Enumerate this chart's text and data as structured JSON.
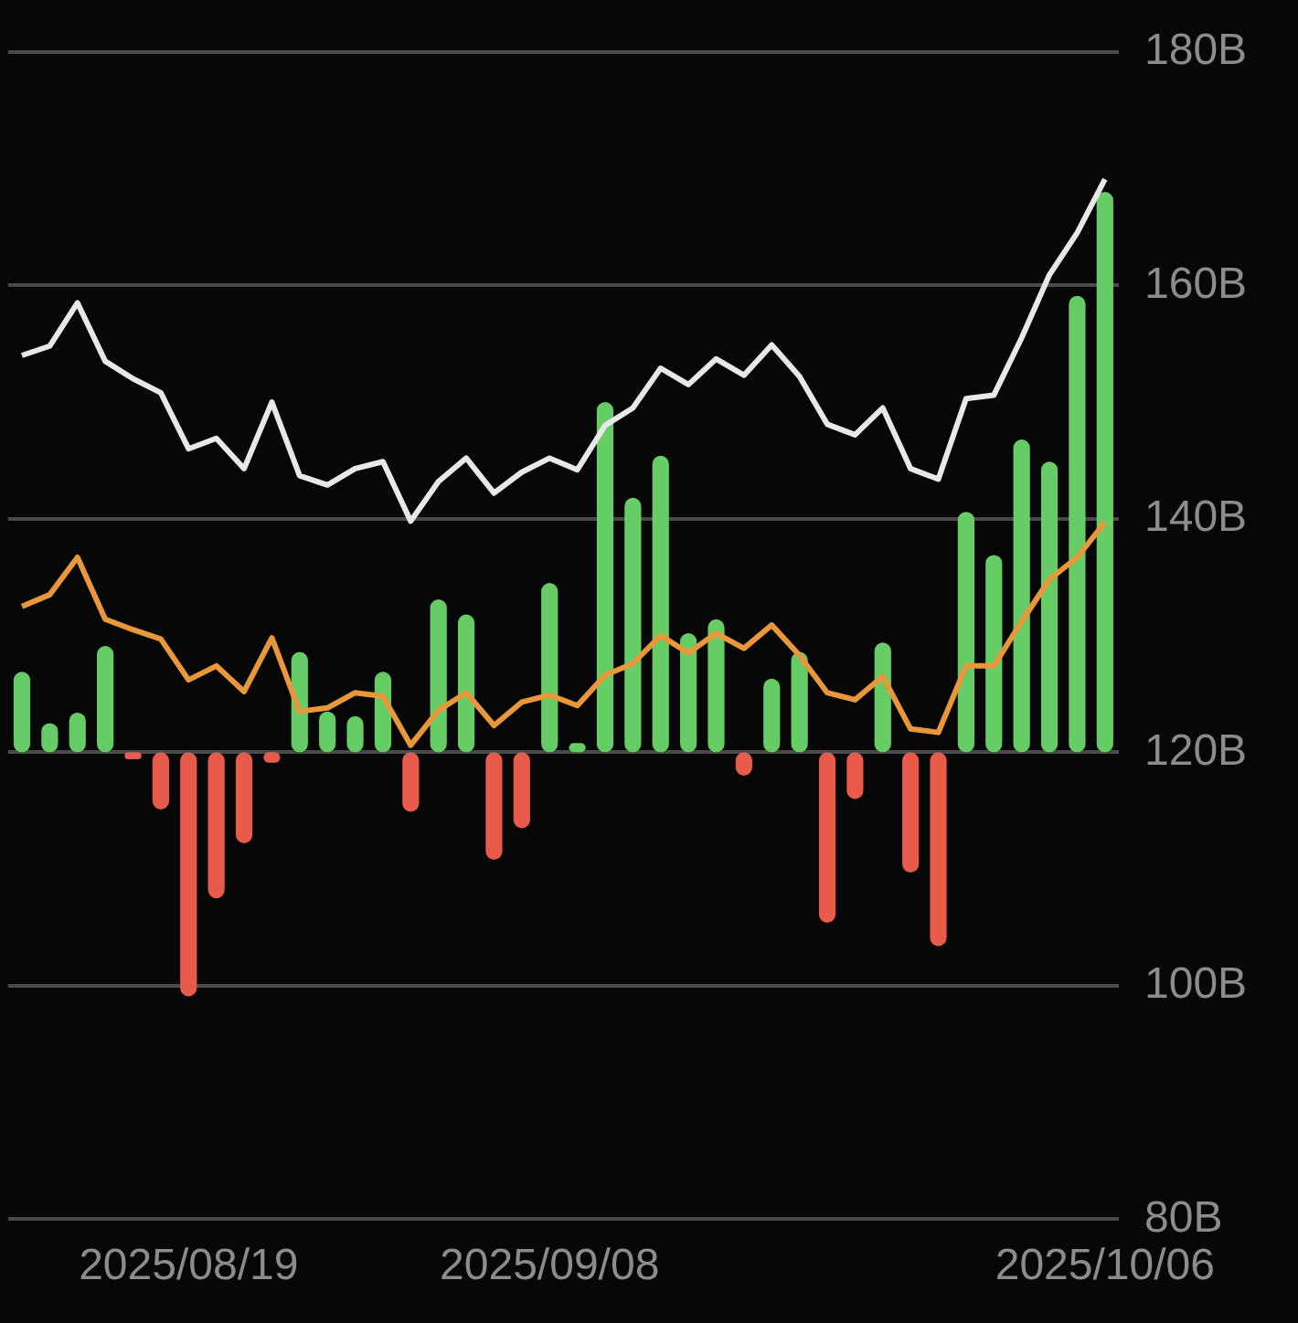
{
  "chart_data": {
    "type": "bar",
    "categories": [
      null,
      null,
      null,
      null,
      null,
      null,
      "2025/08/19",
      null,
      null,
      null,
      null,
      null,
      null,
      null,
      null,
      null,
      null,
      null,
      null,
      "2025/09/08",
      null,
      null,
      null,
      null,
      null,
      null,
      null,
      null,
      null,
      null,
      null,
      null,
      null,
      null,
      null,
      null,
      null,
      null,
      null,
      "2025/10/06"
    ],
    "series": [
      {
        "base": [
          120,
          120,
          120,
          120,
          120,
          120,
          120,
          120,
          120,
          120,
          120,
          120,
          120,
          120,
          120,
          120,
          120,
          120,
          120,
          120,
          120,
          120,
          120,
          120,
          120,
          120,
          120,
          120,
          120,
          120,
          120,
          120,
          120,
          120,
          120,
          120,
          120,
          120,
          120,
          120
        ],
        "values": [
          6.9,
          2.5,
          3.4,
          9.1,
          -0.6,
          -4.9,
          -20.9,
          -12.5,
          -7.8,
          -0.9,
          8.6,
          3.5,
          3.1,
          6.9,
          -5.1,
          13.1,
          11.8,
          -9.2,
          -6.5,
          14.5,
          0.8,
          30,
          21.8,
          25.4,
          10.2,
          11.4,
          -2,
          6.3,
          8.6,
          -14.6,
          -4,
          9.4,
          -10.3,
          -16.6,
          20.6,
          16.9,
          26.8,
          24.9,
          39.1,
          48
        ],
        "colors": [
          "#66cc66",
          "#66cc66",
          "#66cc66",
          "#66cc66",
          "#e85a4a",
          "#e85a4a",
          "#e85a4a",
          "#e85a4a",
          "#e85a4a",
          "#e85a4a",
          "#66cc66",
          "#66cc66",
          "#66cc66",
          "#66cc66",
          "#e85a4a",
          "#66cc66",
          "#66cc66",
          "#e85a4a",
          "#e85a4a",
          "#66cc66",
          "#66cc66",
          "#66cc66",
          "#66cc66",
          "#66cc66",
          "#66cc66",
          "#66cc66",
          "#e85a4a",
          "#66cc66",
          "#66cc66",
          "#e85a4a",
          "#e85a4a",
          "#66cc66",
          "#e85a4a",
          "#e85a4a",
          "#66cc66",
          "#66cc66",
          "#66cc66",
          "#66cc66",
          "#66cc66",
          "#66cc66"
        ]
      },
      {
        "type": "line",
        "color": "#e8e8e8",
        "values": [
          154,
          154.8,
          158.5,
          153.5,
          152,
          150.8,
          146,
          146.9,
          144.3,
          150,
          143.7,
          142.9,
          144.3,
          144.9,
          139.8,
          143.2,
          145.2,
          142.2,
          144,
          145.2,
          144.2,
          148,
          149.5,
          152.9,
          151.5,
          153.7,
          152.3,
          154.9,
          152.2,
          148.1,
          147.2,
          149.5,
          144.3,
          143.4,
          150.3,
          150.6,
          155.5,
          160.9,
          164.5,
          169.1
        ]
      },
      {
        "type": "line",
        "color": "#e8973a",
        "values": [
          132.5,
          133.5,
          136.7,
          131.4,
          130.5,
          129.7,
          126.2,
          127.4,
          125.2,
          129.8,
          123.5,
          123.8,
          125.1,
          124.8,
          120.6,
          123.6,
          125.1,
          122.3,
          124.3,
          124.9,
          124,
          126.6,
          127.6,
          130,
          128.5,
          130.2,
          128.9,
          130.9,
          128.3,
          125.1,
          124.5,
          126.5,
          122,
          121.7,
          127.4,
          127.4,
          131.2,
          134.8,
          136.7,
          139.7
        ]
      }
    ],
    "ylim": [
      80,
      180
    ],
    "yticks": [
      {
        "value": 80,
        "label": "80B"
      },
      {
        "value": 100,
        "label": "100B"
      },
      {
        "value": 120,
        "label": "120B"
      },
      {
        "value": 140,
        "label": "140B"
      },
      {
        "value": 160,
        "label": "160B"
      },
      {
        "value": 180,
        "label": "180B"
      }
    ],
    "grid": "y",
    "legend": false,
    "marker": "none",
    "line_style": "solid"
  }
}
